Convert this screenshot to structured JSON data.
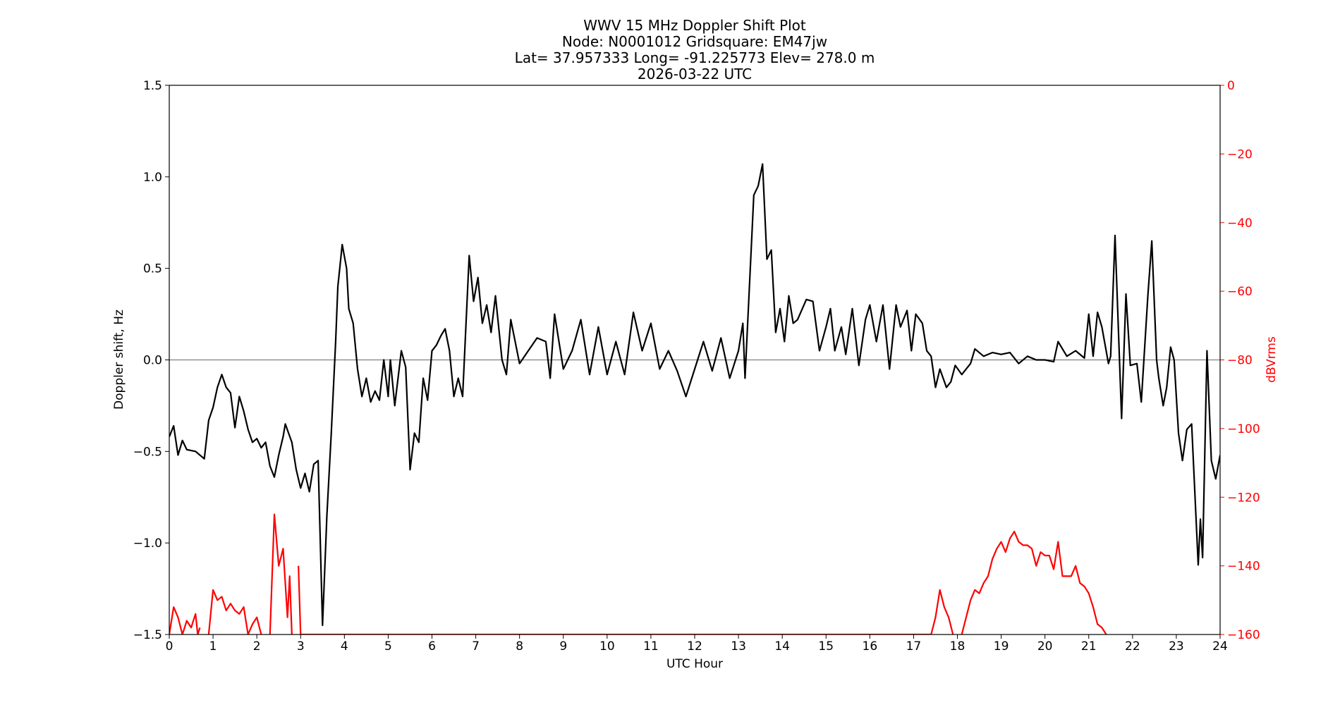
{
  "chart_data": {
    "type": "line",
    "title": [
      "WWV 15 MHz Doppler Shift Plot",
      "Node:  N0001012     Gridsquare:  EM47jw",
      "Lat= 37.957333    Long= -91.225773    Elev= 278.0 m",
      "2026-03-22  UTC"
    ],
    "x_label": "UTC Hour",
    "y_label": "Doppler shift, Hz",
    "y2_label": "dBVrms",
    "y2_color": "#ff0000",
    "xlim": [
      0,
      24
    ],
    "xticks": [
      0,
      1,
      2,
      3,
      4,
      5,
      6,
      7,
      8,
      9,
      10,
      11,
      12,
      13,
      14,
      15,
      16,
      17,
      18,
      19,
      20,
      21,
      22,
      23,
      24
    ],
    "ylim": [
      -1.5,
      1.5
    ],
    "yticks": [
      {
        "value": -1.5,
        "label": "−1.5"
      },
      {
        "value": -1.0,
        "label": "−1.0"
      },
      {
        "value": -0.5,
        "label": "−0.5"
      },
      {
        "value": 0,
        "label": "0.0"
      },
      0.5,
      {
        "value": 1.0,
        "label": "1.0"
      },
      1.5
    ],
    "y2lim": [
      -160,
      0
    ],
    "y2ticks": [
      {
        "value": -160,
        "label": "−160"
      },
      {
        "value": -140,
        "label": "−140"
      },
      {
        "value": -120,
        "label": "−120"
      },
      {
        "value": -100,
        "label": "−100"
      },
      {
        "value": -80,
        "label": "−80"
      },
      {
        "value": -60,
        "label": "−60"
      },
      {
        "value": -40,
        "label": "−40"
      },
      {
        "value": -20,
        "label": "−20"
      },
      0
    ],
    "reference_line": 0,
    "reference_color": "#808080",
    "series": [
      {
        "name": "Doppler shift",
        "color": "#000000",
        "x": [
          0,
          0.1,
          0.2,
          0.3,
          0.4,
          0.6,
          0.8,
          0.9,
          1.0,
          1.1,
          1.2,
          1.3,
          1.4,
          1.5,
          1.6,
          1.7,
          1.8,
          1.9,
          2.0,
          2.1,
          2.2,
          2.3,
          2.4,
          2.5,
          2.6,
          2.65,
          2.8,
          2.9,
          3.0,
          3.1,
          3.2,
          3.3,
          3.4,
          3.5,
          3.6,
          3.7,
          3.8,
          3.85,
          3.95,
          4.05,
          4.1,
          4.2,
          4.3,
          4.4,
          4.5,
          4.6,
          4.7,
          4.8,
          4.9,
          5.0,
          5.05,
          5.15,
          5.3,
          5.4,
          5.5,
          5.6,
          5.7,
          5.8,
          5.9,
          6.0,
          6.1,
          6.2,
          6.3,
          6.4,
          6.5,
          6.6,
          6.7,
          6.85,
          6.95,
          7.05,
          7.15,
          7.25,
          7.35,
          7.45,
          7.6,
          7.7,
          7.8,
          7.9,
          8.0,
          8.2,
          8.4,
          8.6,
          8.7,
          8.8,
          9.0,
          9.2,
          9.4,
          9.6,
          9.8,
          10.0,
          10.2,
          10.4,
          10.6,
          10.8,
          11.0,
          11.2,
          11.4,
          11.6,
          11.8,
          12.0,
          12.2,
          12.4,
          12.6,
          12.8,
          13.0,
          13.1,
          13.15,
          13.25,
          13.35,
          13.45,
          13.55,
          13.65,
          13.75,
          13.85,
          13.95,
          14.05,
          14.15,
          14.25,
          14.35,
          14.55,
          14.7,
          14.85,
          15.0,
          15.1,
          15.2,
          15.35,
          15.45,
          15.6,
          15.75,
          15.9,
          16.0,
          16.15,
          16.3,
          16.45,
          16.6,
          16.7,
          16.85,
          16.95,
          17.05,
          17.2,
          17.3,
          17.4,
          17.5,
          17.6,
          17.75,
          17.85,
          17.95,
          18.1,
          18.2,
          18.3,
          18.4,
          18.6,
          18.8,
          19.0,
          19.2,
          19.4,
          19.6,
          19.8,
          20.0,
          20.2,
          20.3,
          20.5,
          20.7,
          20.9,
          21.0,
          21.1,
          21.2,
          21.3,
          21.45,
          21.5,
          21.6,
          21.75,
          21.85,
          21.95,
          22.1,
          22.2,
          22.35,
          22.44,
          22.55,
          22.6,
          22.7,
          22.78,
          22.87,
          22.95,
          23.05,
          23.14,
          23.24,
          23.35,
          23.5,
          23.55,
          23.6,
          23.7,
          23.8,
          23.9,
          24.0
        ],
        "values": [
          -0.42,
          -0.36,
          -0.52,
          -0.44,
          -0.49,
          -0.5,
          -0.54,
          -0.33,
          -0.26,
          -0.15,
          -0.08,
          -0.15,
          -0.18,
          -0.37,
          -0.2,
          -0.28,
          -0.38,
          -0.45,
          -0.43,
          -0.48,
          -0.45,
          -0.58,
          -0.64,
          -0.52,
          -0.42,
          -0.35,
          -0.45,
          -0.6,
          -0.7,
          -0.62,
          -0.72,
          -0.57,
          -0.55,
          -1.45,
          -0.85,
          -0.4,
          0.1,
          0.4,
          0.63,
          0.5,
          0.28,
          0.2,
          -0.05,
          -0.2,
          -0.1,
          -0.23,
          -0.17,
          -0.22,
          0.0,
          -0.2,
          0.0,
          -0.25,
          0.05,
          -0.04,
          -0.6,
          -0.4,
          -0.45,
          -0.1,
          -0.22,
          0.05,
          0.08,
          0.13,
          0.17,
          0.05,
          -0.2,
          -0.1,
          -0.2,
          0.57,
          0.32,
          0.45,
          0.2,
          0.3,
          0.15,
          0.35,
          0.0,
          -0.08,
          0.22,
          0.1,
          -0.02,
          0.05,
          0.12,
          0.1,
          -0.1,
          0.25,
          -0.05,
          0.05,
          0.22,
          -0.08,
          0.18,
          -0.08,
          0.1,
          -0.08,
          0.26,
          0.05,
          0.2,
          -0.05,
          0.05,
          -0.06,
          -0.2,
          -0.05,
          0.1,
          -0.06,
          0.12,
          -0.1,
          0.05,
          0.2,
          -0.1,
          0.4,
          0.9,
          0.95,
          1.07,
          0.55,
          0.6,
          0.15,
          0.28,
          0.1,
          0.35,
          0.2,
          0.22,
          0.33,
          0.32,
          0.05,
          0.18,
          0.28,
          0.05,
          0.18,
          0.03,
          0.28,
          -0.03,
          0.22,
          0.3,
          0.1,
          0.3,
          -0.05,
          0.3,
          0.18,
          0.27,
          0.05,
          0.25,
          0.2,
          0.05,
          0.02,
          -0.15,
          -0.05,
          -0.15,
          -0.12,
          -0.03,
          -0.08,
          -0.05,
          -0.02,
          0.06,
          0.02,
          0.04,
          0.03,
          0.04,
          -0.02,
          0.02,
          0.0,
          0.0,
          -0.01,
          0.1,
          0.02,
          0.05,
          0.01,
          0.25,
          0.02,
          0.26,
          0.18,
          -0.02,
          0.02,
          0.68,
          -0.32,
          0.36,
          -0.03,
          -0.02,
          -0.23,
          0.35,
          0.65,
          0.0,
          -0.1,
          -0.25,
          -0.15,
          0.07,
          0.0,
          -0.4,
          -0.55,
          -0.38,
          -0.35,
          -1.12,
          -0.87,
          -1.08,
          0.05,
          -0.55,
          -0.65,
          -0.52
        ]
      },
      {
        "name": "dBVrms",
        "color": "#ff0000",
        "axis": "y2",
        "x": [
          0,
          0.1,
          0.2,
          0.3,
          0.4,
          0.5,
          0.6,
          0.65,
          0.7,
          0.8,
          0.9,
          1.0,
          1.1,
          1.2,
          1.3,
          1.4,
          1.5,
          1.6,
          1.7,
          1.8,
          1.9,
          2.0,
          2.1,
          2.2,
          2.3,
          2.4,
          2.5,
          2.6,
          2.7,
          2.75,
          2.8,
          2.9,
          2.95,
          3.0,
          17.4,
          17.5,
          17.6,
          17.7,
          17.8,
          17.9,
          18.0,
          18.1,
          18.2,
          18.3,
          18.4,
          18.5,
          18.6,
          18.7,
          18.8,
          18.9,
          19.0,
          19.1,
          19.2,
          19.3,
          19.4,
          19.5,
          19.6,
          19.7,
          19.8,
          19.9,
          20.0,
          20.1,
          20.2,
          20.3,
          20.4,
          20.5,
          20.6,
          20.7,
          20.8,
          20.9,
          21.0,
          21.1,
          21.2,
          21.3,
          21.4
        ],
        "values": [
          -160,
          -152,
          -155,
          -160,
          -156,
          -158,
          -154,
          -160,
          -158,
          null,
          -160,
          -147,
          -150,
          -149,
          -153,
          -151,
          -153,
          -154,
          -152,
          -160,
          -157,
          -155,
          -160,
          null,
          -160,
          -125,
          -140,
          -135,
          -155,
          -143,
          -160,
          null,
          -140,
          -160,
          -160,
          -155,
          -147,
          -152,
          -155,
          -160,
          null,
          -160,
          -155,
          -150,
          -147,
          -148,
          -145,
          -143,
          -138,
          -135,
          -133,
          -136,
          -132,
          -130,
          -133,
          -134,
          -134,
          -135,
          -140,
          -136,
          -137,
          -137,
          -141,
          -133,
          -143,
          -143,
          -143,
          -140,
          -145,
          -146,
          -148,
          -152,
          -157,
          -158,
          -160
        ]
      }
    ]
  }
}
